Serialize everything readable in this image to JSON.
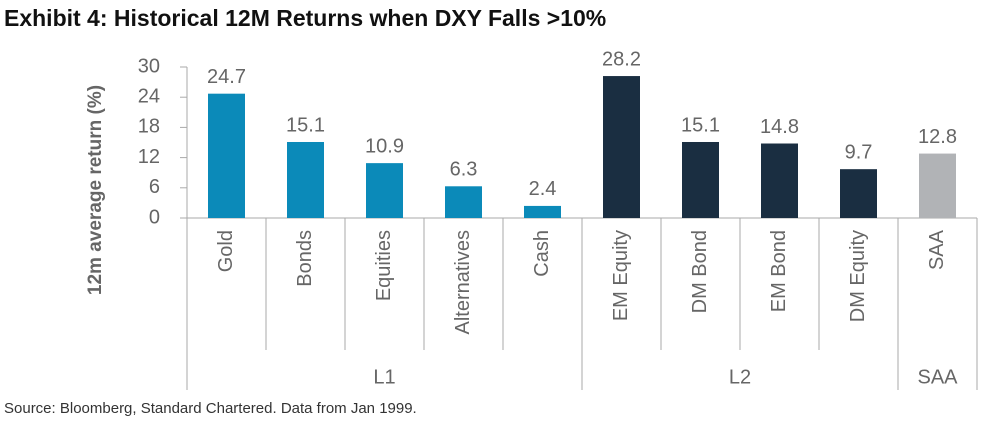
{
  "chart_data": {
    "type": "bar",
    "title": "Exhibit 4: Historical 12M Returns when DXY Falls >10%",
    "y_label": "12m average return (%)",
    "source": "Source: Bloomberg, Standard Chartered. Data from Jan 1999.",
    "groups": [
      {
        "name": "L1",
        "color": "#0b8ab9",
        "categories": [
          "Gold",
          "Bonds",
          "Equities",
          "Alternatives",
          "Cash"
        ],
        "values": [
          24.7,
          15.1,
          10.9,
          6.3,
          2.4
        ]
      },
      {
        "name": "L2",
        "color": "#1a2e41",
        "categories": [
          "EM Equity",
          "DM Bond",
          "EM Bond",
          "DM Equity"
        ],
        "values": [
          28.2,
          15.1,
          14.8,
          9.7
        ]
      },
      {
        "name": "SAA",
        "color": "#b1b3b6",
        "categories": [
          "SAA"
        ],
        "values": [
          12.8
        ]
      }
    ],
    "ylim": [
      0,
      30
    ],
    "yticks": [
      0,
      6,
      12,
      18,
      24,
      30
    ],
    "grid": false
  }
}
